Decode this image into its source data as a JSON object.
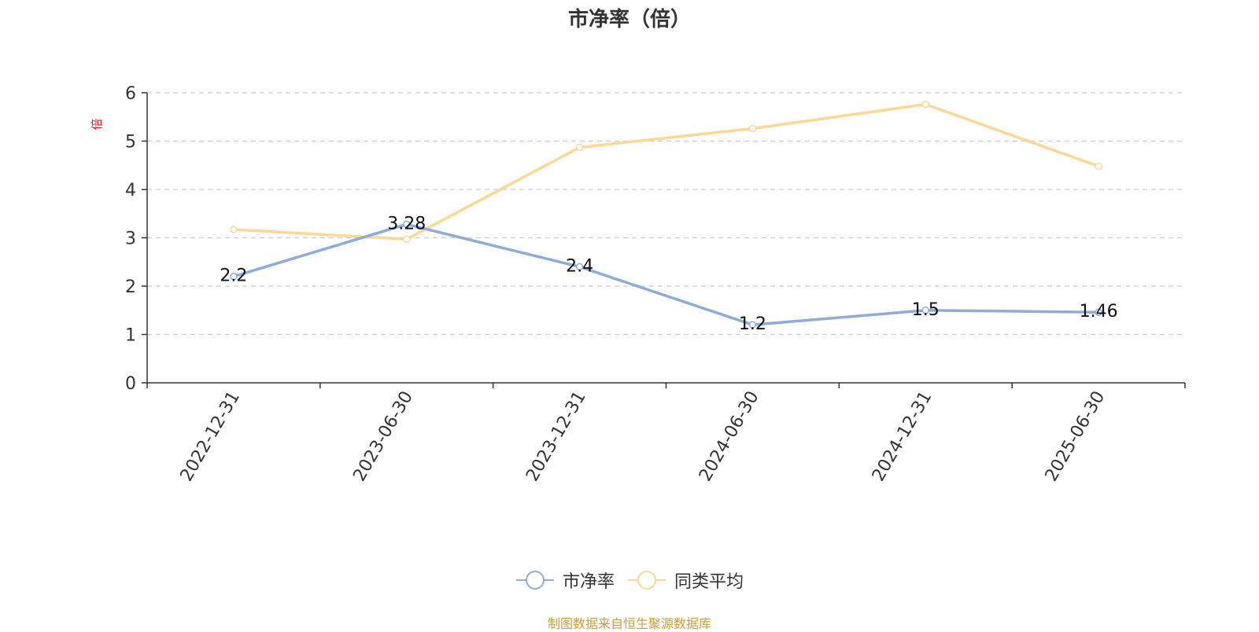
{
  "chart_data": {
    "type": "line",
    "title": "市净率（倍）",
    "ylabel": "倍",
    "x": [
      "2022-12-31",
      "2023-06-30",
      "2023-12-31",
      "2024-06-30",
      "2024-12-31",
      "2025-06-30"
    ],
    "ylim": [
      0,
      6
    ],
    "yticks": [
      0,
      1,
      2,
      3,
      4,
      5,
      6
    ],
    "grid": true,
    "legend_position": "bottom",
    "series": [
      {
        "name": "市净率",
        "color": "#8eacd6",
        "values": [
          2.2,
          3.28,
          2.4,
          1.2,
          1.5,
          1.46
        ],
        "labels": [
          "2.2",
          "3.28",
          "2.4",
          "1.2",
          "1.5",
          "1.46"
        ],
        "show_labels": true
      },
      {
        "name": "同类平均",
        "color": "#fbd896",
        "values": [
          3.17,
          2.97,
          4.87,
          5.26,
          5.76,
          4.48
        ],
        "show_labels": false
      }
    ]
  },
  "footer": {
    "note": "制图数据来自恒生聚源数据库",
    "note_color": "#c8a03c"
  },
  "colors": {
    "axis": "#333333",
    "grid": "#cccccc",
    "ylabel": "#e02020"
  }
}
